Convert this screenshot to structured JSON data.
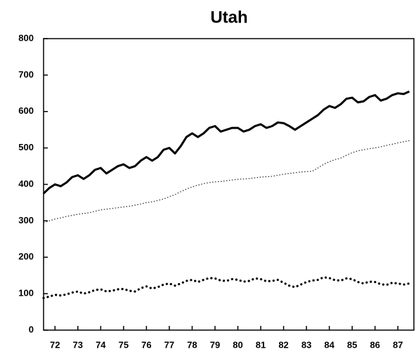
{
  "chart_data": {
    "type": "line",
    "title": "Utah",
    "x": [
      72,
      72.25,
      72.5,
      72.75,
      73,
      73.25,
      73.5,
      73.75,
      74,
      74.25,
      74.5,
      74.75,
      75,
      75.25,
      75.5,
      75.75,
      76,
      76.25,
      76.5,
      76.75,
      77,
      77.25,
      77.5,
      77.75,
      78,
      78.25,
      78.5,
      78.75,
      79,
      79.25,
      79.5,
      79.75,
      80,
      80.25,
      80.5,
      80.75,
      81,
      81.25,
      81.5,
      81.75,
      82,
      82.25,
      82.5,
      82.75,
      83,
      83.25,
      83.5,
      83.75,
      84,
      84.25,
      84.5,
      84.75,
      85,
      85.25,
      85.5,
      85.75,
      86,
      86.25,
      86.5,
      86.75,
      87,
      87.25,
      87.5,
      87.75,
      88
    ],
    "series": [
      {
        "color": "#000000",
        "style": "solid",
        "values": [
          375,
          390,
          400,
          395,
          405,
          420,
          425,
          415,
          425,
          440,
          445,
          430,
          440,
          450,
          455,
          445,
          450,
          465,
          475,
          465,
          475,
          495,
          500,
          485,
          505,
          530,
          540,
          530,
          540,
          555,
          560,
          545,
          550,
          555,
          555,
          545,
          550,
          560,
          565,
          555,
          560,
          570,
          568,
          560,
          550,
          560,
          570,
          580,
          590,
          605,
          615,
          610,
          620,
          635,
          638,
          625,
          628,
          640,
          645,
          630,
          635,
          645,
          650,
          648,
          655
        ]
      },
      {
        "color": "#333333",
        "style": "thin-dotted",
        "values": [
          295,
          300,
          305,
          308,
          312,
          315,
          318,
          320,
          322,
          326,
          330,
          332,
          334,
          336,
          338,
          340,
          343,
          346,
          350,
          352,
          356,
          360,
          366,
          372,
          380,
          387,
          393,
          398,
          402,
          405,
          407,
          408,
          410,
          412,
          414,
          415,
          416,
          418,
          420,
          421,
          422,
          425,
          428,
          430,
          432,
          434,
          435,
          436,
          445,
          455,
          462,
          468,
          472,
          480,
          487,
          492,
          495,
          498,
          500,
          503,
          507,
          510,
          514,
          517,
          520
        ]
      },
      {
        "color": "#000000",
        "style": "thick-dotted",
        "values": [
          88,
          92,
          97,
          95,
          98,
          103,
          106,
          100,
          104,
          110,
          112,
          106,
          108,
          112,
          113,
          108,
          106,
          115,
          120,
          114,
          118,
          125,
          128,
          122,
          128,
          135,
          138,
          132,
          138,
          143,
          142,
          136,
          135,
          140,
          138,
          133,
          135,
          142,
          140,
          134,
          135,
          138,
          130,
          122,
          118,
          125,
          132,
          136,
          138,
          145,
          143,
          137,
          136,
          142,
          140,
          132,
          128,
          133,
          132,
          126,
          124,
          130,
          128,
          125,
          128
        ]
      }
    ],
    "xlim": [
      72,
      88.2
    ],
    "xticks": [
      {
        "value": 72.5,
        "label": "72"
      },
      {
        "value": 73.5,
        "label": "73"
      },
      {
        "value": 74.5,
        "label": "74"
      },
      {
        "value": 75.5,
        "label": "75"
      },
      {
        "value": 76.5,
        "label": "76"
      },
      {
        "value": 77.5,
        "label": "77"
      },
      {
        "value": 78.5,
        "label": "78"
      },
      {
        "value": 79.5,
        "label": "79"
      },
      {
        "value": 80.5,
        "label": "80"
      },
      {
        "value": 81.5,
        "label": "81"
      },
      {
        "value": 82.5,
        "label": "82"
      },
      {
        "value": 83.5,
        "label": "83"
      },
      {
        "value": 84.5,
        "label": "84"
      },
      {
        "value": 85.5,
        "label": "85"
      },
      {
        "value": 86.5,
        "label": "86"
      },
      {
        "value": 87.5,
        "label": "87"
      }
    ],
    "ylim": [
      0,
      800
    ],
    "yticks": [
      0,
      100,
      200,
      300,
      400,
      500,
      600,
      700,
      800
    ]
  }
}
